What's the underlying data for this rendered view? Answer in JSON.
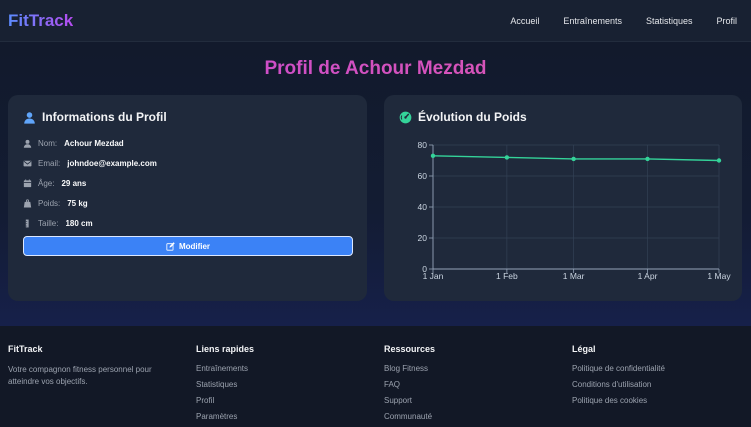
{
  "nav": {
    "brand": "FitTrack",
    "links": [
      "Accueil",
      "Entraînements",
      "Statistiques",
      "Profil"
    ]
  },
  "page": {
    "title": "Profil de Achour Mezdad"
  },
  "profile": {
    "title": "Informations du Profil",
    "rows": [
      {
        "icon": "user-icon",
        "label": "Nom:",
        "value": "Achour Mezdad"
      },
      {
        "icon": "envelope-icon",
        "label": "Email:",
        "value": "johndoe@example.com"
      },
      {
        "icon": "calendar-icon",
        "label": "Âge:",
        "value": "29 ans"
      },
      {
        "icon": "weight-icon",
        "label": "Poids:",
        "value": "75 kg"
      },
      {
        "icon": "ruler-icon",
        "label": "Taille:",
        "value": "180 cm"
      }
    ],
    "edit_label": "Modifier"
  },
  "weight": {
    "title": "Évolution du Poids",
    "chart_data": {
      "type": "line",
      "x": [
        "1 Jan",
        "1 Feb",
        "1 Mar",
        "1 Apr",
        "1 May"
      ],
      "x_points": [
        0,
        31,
        59,
        90,
        120
      ],
      "y_ticks": [
        0,
        20,
        40,
        60,
        80
      ],
      "ylim": [
        0,
        80
      ],
      "series": [
        {
          "values": [
            73,
            72,
            71,
            71,
            70
          ],
          "color": "#34d399"
        }
      ],
      "grid": true
    }
  },
  "footer": {
    "brand": "FitTrack",
    "tagline": "Votre compagnon fitness personnel pour atteindre vos objectifs.",
    "columns": [
      {
        "title": "Liens rapides",
        "items": [
          "Entraînements",
          "Statistiques",
          "Profil",
          "Paramètres"
        ]
      },
      {
        "title": "Ressources",
        "items": [
          "Blog Fitness",
          "FAQ",
          "Support",
          "Communauté"
        ]
      },
      {
        "title": "Légal",
        "items": [
          "Politique de confidentialité",
          "Conditions d'utilisation",
          "Politique des cookies"
        ]
      }
    ]
  },
  "colors": {
    "accent": "#3b82f6",
    "line": "#34d399",
    "title_gradient": [
      "#c548d8",
      "#e05aa8"
    ]
  }
}
